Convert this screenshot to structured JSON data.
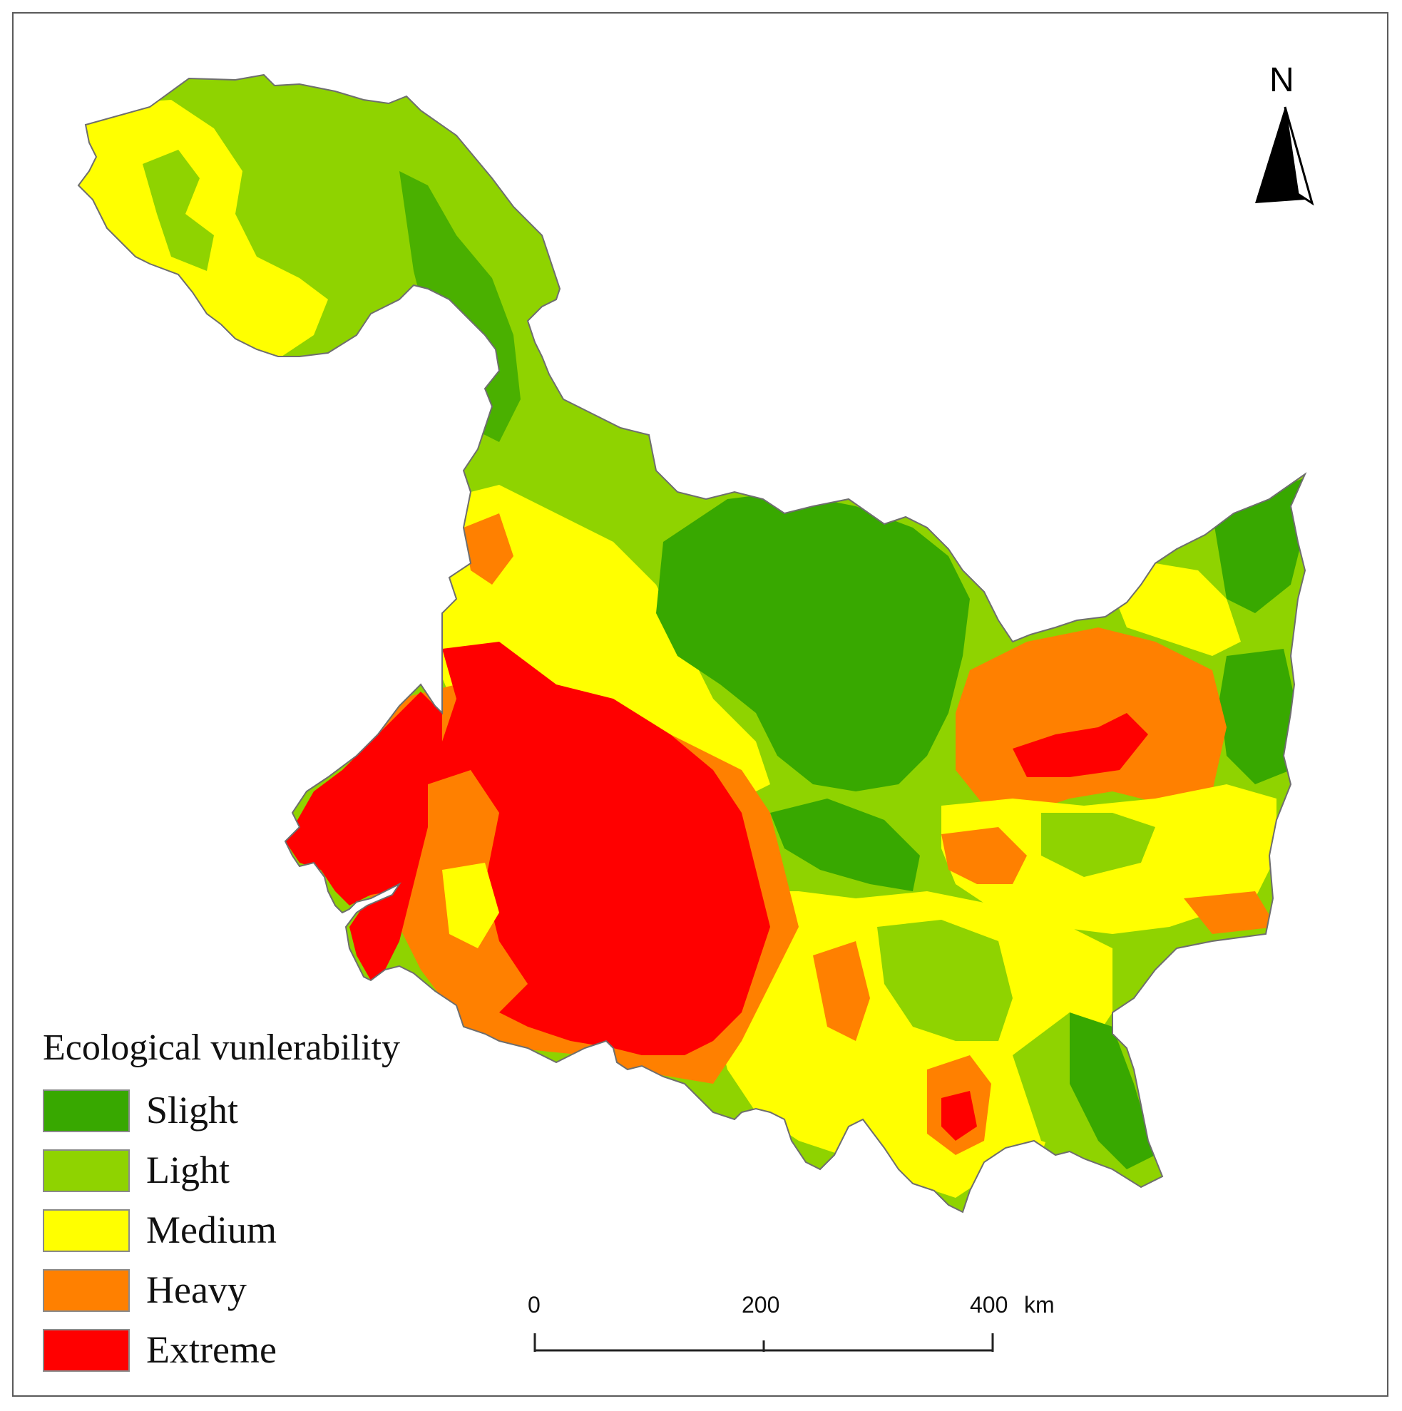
{
  "map": {
    "legend": {
      "title": "Ecological vunlerability",
      "items": [
        {
          "label": "Slight",
          "color": "#38a800"
        },
        {
          "label": "Light",
          "color": "#8fd300"
        },
        {
          "label": "Medium",
          "color": "#ffff00"
        },
        {
          "label": "Heavy",
          "color": "#ff8000"
        },
        {
          "label": "Extreme",
          "color": "#ff0000"
        }
      ]
    },
    "north_arrow": {
      "label": "N"
    },
    "scale_bar": {
      "ticks": [
        "0",
        "200",
        "400"
      ],
      "unit": "km"
    }
  }
}
